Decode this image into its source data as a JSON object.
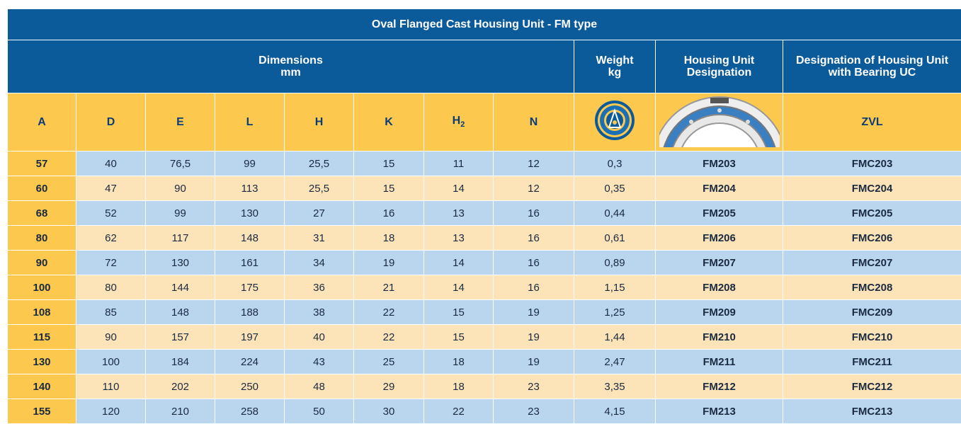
{
  "title": "Oval Flanged Cast Housing Unit - FM type",
  "header": {
    "dimensions": {
      "label": "Dimensions",
      "unit": "mm"
    },
    "weight": {
      "label": "Weight",
      "unit": "kg"
    },
    "housing": {
      "line1": "Housing Unit",
      "line2": "Designation"
    },
    "designation": {
      "line1": "Designation of Housing Unit",
      "line2": "with Bearing UC"
    }
  },
  "columns": [
    "A",
    "D",
    "E",
    "L",
    "H",
    "K",
    {
      "text": "H",
      "sub": "2"
    },
    "N",
    "ZVL"
  ],
  "rows": [
    [
      "57",
      "40",
      "76,5",
      "99",
      "25,5",
      "15",
      "11",
      "12",
      "0,3",
      "FM203",
      "FMC203"
    ],
    [
      "60",
      "47",
      "90",
      "113",
      "25,5",
      "15",
      "14",
      "12",
      "0,35",
      "FM204",
      "FMC204"
    ],
    [
      "68",
      "52",
      "99",
      "130",
      "27",
      "16",
      "13",
      "16",
      "0,44",
      "FM205",
      "FMC205"
    ],
    [
      "80",
      "62",
      "117",
      "148",
      "31",
      "18",
      "13",
      "16",
      "0,61",
      "FM206",
      "FMC206"
    ],
    [
      "90",
      "72",
      "130",
      "161",
      "34",
      "19",
      "14",
      "16",
      "0,89",
      "FM207",
      "FMC207"
    ],
    [
      "100",
      "80",
      "144",
      "175",
      "36",
      "21",
      "14",
      "16",
      "1,15",
      "FM208",
      "FMC208"
    ],
    [
      "108",
      "85",
      "148",
      "188",
      "38",
      "22",
      "15",
      "19",
      "1,25",
      "FM209",
      "FMC209"
    ],
    [
      "115",
      "90",
      "157",
      "197",
      "40",
      "22",
      "15",
      "19",
      "1,44",
      "FM210",
      "FMC210"
    ],
    [
      "130",
      "100",
      "184",
      "224",
      "43",
      "25",
      "18",
      "19",
      "2,47",
      "FM211",
      "FMC211"
    ],
    [
      "140",
      "110",
      "202",
      "250",
      "48",
      "29",
      "18",
      "23",
      "3,35",
      "FM212",
      "FMC212"
    ],
    [
      "155",
      "120",
      "210",
      "258",
      "50",
      "30",
      "22",
      "23",
      "4,15",
      "FM213",
      "FMC213"
    ]
  ]
}
